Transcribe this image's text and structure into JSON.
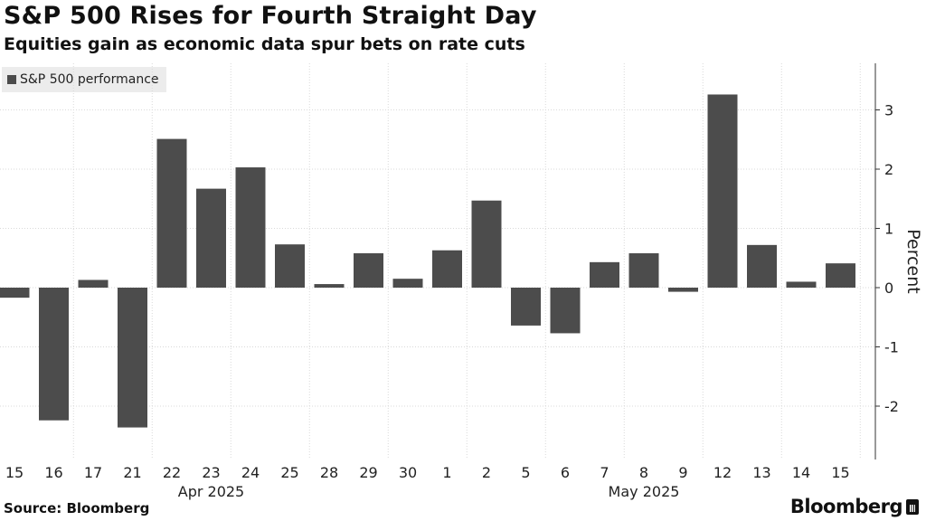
{
  "header": {
    "title": "S&P 500 Rises for Fourth Straight Day",
    "subtitle": "Equities gain as economic data spur bets on rate cuts"
  },
  "footer": {
    "source": "Source: Bloomberg",
    "brand": "Bloomberg"
  },
  "colors": {
    "bar": "#4c4c4c",
    "grid": "#d9d9d9",
    "axis": "#333333",
    "legend_bg": "#ececec"
  },
  "chart_data": {
    "type": "bar",
    "title": "S&P 500 Rises for Fourth Straight Day",
    "subtitle": "Equities gain as economic data spur bets on rate cuts",
    "ylabel": "Percent",
    "xlabel": "",
    "legend": [
      "S&P 500 performance"
    ],
    "legend_position": "top-left",
    "y_axis_side": "right",
    "grid": true,
    "ylim": [
      -2.9,
      3.8
    ],
    "yticks": [
      -2,
      -1,
      0,
      1,
      2,
      3
    ],
    "categories": [
      "15",
      "16",
      "17",
      "21",
      "22",
      "23",
      "24",
      "25",
      "28",
      "29",
      "30",
      "1",
      "2",
      "5",
      "6",
      "7",
      "8",
      "9",
      "12",
      "13",
      "14",
      "15"
    ],
    "month_labels": [
      {
        "label": "Apr 2025",
        "index": 5
      },
      {
        "label": "May 2025",
        "index": 16
      }
    ],
    "series": [
      {
        "name": "S&P 500 performance",
        "values": [
          -0.17,
          -2.24,
          0.13,
          -2.36,
          2.51,
          1.67,
          2.03,
          0.73,
          0.06,
          0.58,
          0.15,
          0.63,
          1.47,
          -0.64,
          -0.77,
          0.43,
          0.58,
          -0.07,
          3.26,
          0.72,
          0.1,
          0.41
        ]
      }
    ]
  }
}
